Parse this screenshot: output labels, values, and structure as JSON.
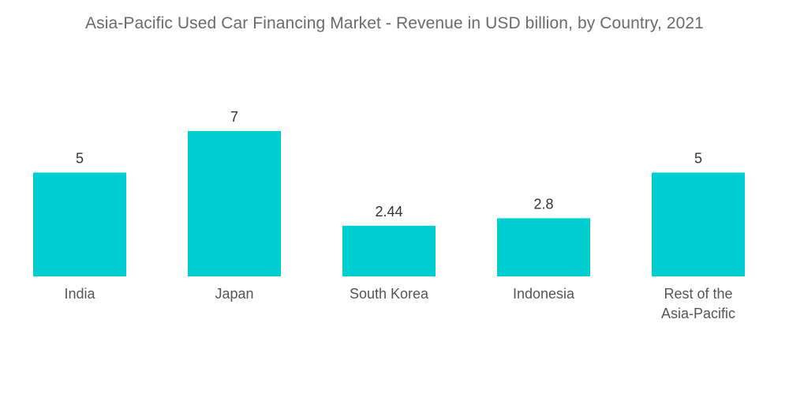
{
  "chart_data": {
    "type": "bar",
    "title": "Asia-Pacific Used Car Financing Market - Revenue in USD billion, by Country, 2021",
    "xlabel": "",
    "ylabel": "",
    "categories": [
      "India",
      "Japan",
      "South Korea",
      "Indonesia",
      "Rest of the Asia-Pacific"
    ],
    "category_lines": [
      [
        "India"
      ],
      [
        "Japan"
      ],
      [
        "South Korea"
      ],
      [
        "Indonesia"
      ],
      [
        "Rest of the",
        "Asia-Pacific"
      ]
    ],
    "values": [
      5,
      7,
      2.44,
      2.8,
      5
    ],
    "value_labels": [
      "5",
      "7",
      "2.44",
      "2.8",
      "5"
    ],
    "ylim": [
      0,
      7
    ],
    "bar_color": "#00CED1",
    "grid": false,
    "legend": "none"
  }
}
